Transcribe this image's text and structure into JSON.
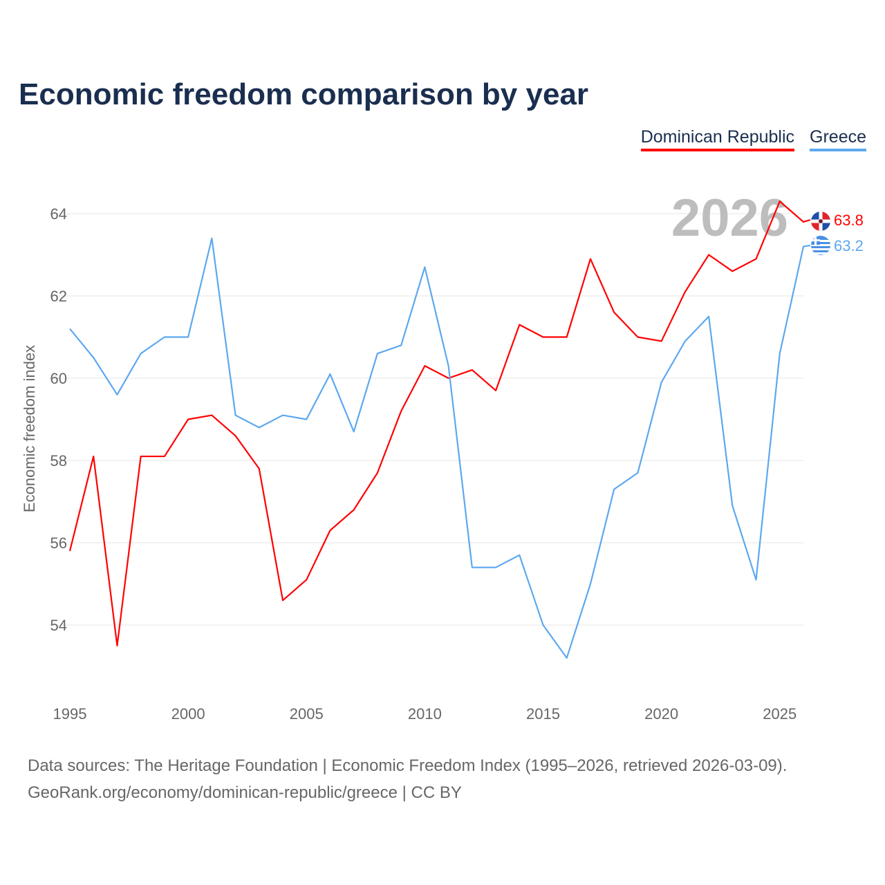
{
  "chart_data": {
    "type": "line",
    "title": "Economic freedom comparison by year",
    "xlabel": "",
    "ylabel": "Economic freedom index",
    "x": [
      1995,
      1996,
      1997,
      1998,
      1999,
      2000,
      2001,
      2002,
      2003,
      2004,
      2005,
      2006,
      2007,
      2008,
      2009,
      2010,
      2011,
      2012,
      2013,
      2014,
      2015,
      2016,
      2017,
      2018,
      2019,
      2020,
      2021,
      2022,
      2023,
      2024,
      2025,
      2026
    ],
    "xlim": [
      1995,
      2026
    ],
    "ylim": [
      52.2,
      64.6
    ],
    "xticks": [
      "1995",
      "2000",
      "2005",
      "2010",
      "2015",
      "2020",
      "2025"
    ],
    "yticks": [
      "54",
      "56",
      "58",
      "60",
      "62",
      "64"
    ],
    "grid": true,
    "legend_position": "top-right",
    "year_watermark": "2026",
    "series": [
      {
        "name": "Dominican Republic",
        "color": "#ff0000",
        "end_label": "63.8",
        "values": [
          55.8,
          58.1,
          53.5,
          58.1,
          58.1,
          59.0,
          59.1,
          58.6,
          57.8,
          54.6,
          55.1,
          56.3,
          56.8,
          57.7,
          59.2,
          60.3,
          60.0,
          60.2,
          59.7,
          61.3,
          61.0,
          61.0,
          62.9,
          61.6,
          61.0,
          60.9,
          62.1,
          63.0,
          62.6,
          62.9,
          64.3,
          63.8
        ]
      },
      {
        "name": "Greece",
        "color": "#5ca8ef",
        "end_label": "63.2",
        "values": [
          61.2,
          60.5,
          59.6,
          60.6,
          61.0,
          61.0,
          63.4,
          59.1,
          58.8,
          59.1,
          59.0,
          60.1,
          58.7,
          60.6,
          60.8,
          62.7,
          60.3,
          55.4,
          55.4,
          55.7,
          54.0,
          53.2,
          55.0,
          57.3,
          57.7,
          59.9,
          60.9,
          61.5,
          56.9,
          55.1,
          60.6,
          63.2
        ]
      }
    ]
  },
  "footer": {
    "line1": "Data sources: The Heritage Foundation | Economic Freedom Index (1995–2026, retrieved 2026-03-09).",
    "line2": "GeoRank.org/economy/dominican-republic/greece | CC BY"
  }
}
